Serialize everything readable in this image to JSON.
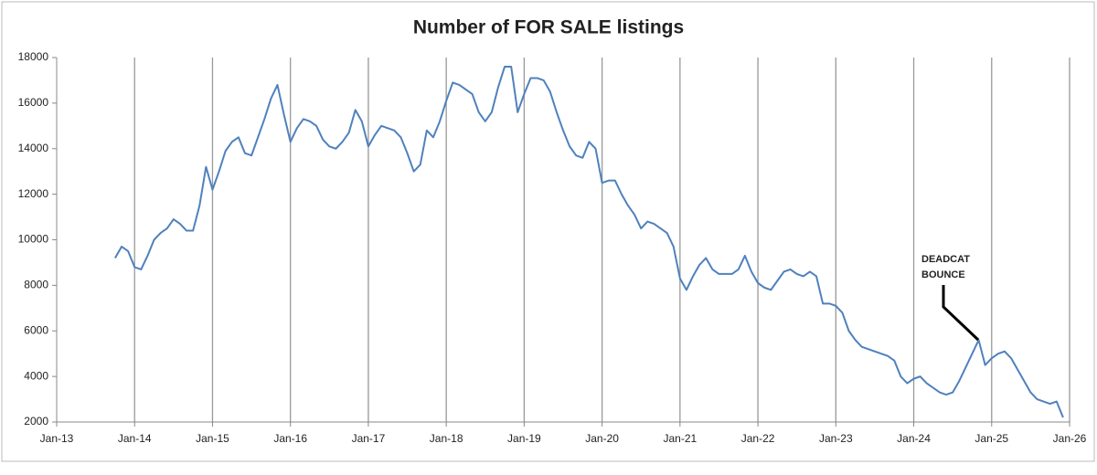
{
  "chart_data": {
    "type": "line",
    "title": "Number of FOR SALE listings",
    "x": [
      "2013-10",
      "2013-11",
      "2013-12",
      "2014-01",
      "2014-02",
      "2014-03",
      "2014-04",
      "2014-05",
      "2014-06",
      "2014-07",
      "2014-08",
      "2014-09",
      "2014-10",
      "2014-11",
      "2014-12",
      "2015-01",
      "2015-02",
      "2015-03",
      "2015-04",
      "2015-05",
      "2015-06",
      "2015-07",
      "2015-08",
      "2015-09",
      "2015-10",
      "2015-11",
      "2015-12",
      "2016-01",
      "2016-02",
      "2016-03",
      "2016-04",
      "2016-05",
      "2016-06",
      "2016-07",
      "2016-08",
      "2016-09",
      "2016-10",
      "2016-11",
      "2016-12",
      "2017-01",
      "2017-02",
      "2017-03",
      "2017-04",
      "2017-05",
      "2017-06",
      "2017-07",
      "2017-08",
      "2017-09",
      "2017-10",
      "2017-11",
      "2017-12",
      "2018-01",
      "2018-02",
      "2018-03",
      "2018-04",
      "2018-05",
      "2018-06",
      "2018-07",
      "2018-08",
      "2018-09",
      "2018-10",
      "2018-11",
      "2018-12",
      "2019-01",
      "2019-02",
      "2019-03",
      "2019-04",
      "2019-05",
      "2019-06",
      "2019-07",
      "2019-08",
      "2019-09",
      "2019-10",
      "2019-11",
      "2019-12",
      "2020-01",
      "2020-02",
      "2020-03",
      "2020-04",
      "2020-05",
      "2020-06",
      "2020-07",
      "2020-08",
      "2020-09",
      "2020-10",
      "2020-11",
      "2020-12",
      "2021-01",
      "2021-02",
      "2021-03",
      "2021-04",
      "2021-05",
      "2021-06",
      "2021-07",
      "2021-08",
      "2021-09",
      "2021-10",
      "2021-11",
      "2021-12",
      "2022-01",
      "2022-02",
      "2022-03",
      "2022-04",
      "2022-05",
      "2022-06",
      "2022-07",
      "2022-08",
      "2022-09",
      "2022-10",
      "2022-11",
      "2022-12",
      "2023-01",
      "2023-02",
      "2023-03",
      "2023-04",
      "2023-05",
      "2023-06",
      "2023-07",
      "2023-08",
      "2023-09",
      "2023-10",
      "2023-11",
      "2023-12",
      "2024-01",
      "2024-02",
      "2024-03",
      "2024-04",
      "2024-05",
      "2024-06",
      "2024-07",
      "2024-08",
      "2024-09",
      "2024-10",
      "2024-11",
      "2024-12",
      "2025-01",
      "2025-02",
      "2025-03",
      "2025-04",
      "2025-05",
      "2025-06",
      "2025-07",
      "2025-08",
      "2025-09",
      "2025-10",
      "2025-11",
      "2025-12"
    ],
    "series": [
      {
        "color": "#4f81bd",
        "values": [
          9200,
          9700,
          9500,
          8800,
          8700,
          9300,
          10000,
          10300,
          10500,
          10900,
          10700,
          10400,
          10400,
          11500,
          13200,
          12200,
          13000,
          13900,
          14300,
          14500,
          13800,
          13700,
          14500,
          15300,
          16200,
          16800,
          15500,
          14300,
          14900,
          15300,
          15200,
          15000,
          14400,
          14100,
          14000,
          14300,
          14700,
          15700,
          15200,
          14100,
          14600,
          15000,
          14900,
          14800,
          14500,
          13800,
          13000,
          13300,
          14800,
          14500,
          15200,
          16100,
          16900,
          16800,
          16600,
          16400,
          15600,
          15200,
          15600,
          16700,
          17600,
          17600,
          15600,
          16400,
          17100,
          17100,
          17000,
          16500,
          15600,
          14800,
          14100,
          13700,
          13600,
          14300,
          14000,
          12500,
          12600,
          12600,
          12000,
          11500,
          11100,
          10500,
          10800,
          10700,
          10500,
          10300,
          9700,
          8300,
          7800,
          8400,
          8900,
          9200,
          8700,
          8500,
          8500,
          8500,
          8700,
          9300,
          8600,
          8100,
          7900,
          7800,
          8200,
          8600,
          8700,
          8500,
          8400,
          8600,
          8400,
          7200,
          7200,
          7100,
          6800,
          6000,
          5600,
          5300,
          5200,
          5100,
          5000,
          4900,
          4700,
          4000,
          3700,
          3900,
          4000,
          3700,
          3500,
          3300,
          3200,
          3300,
          3800,
          4400,
          5000,
          5600,
          4500,
          4800,
          5000,
          5100,
          4800,
          4300,
          3800,
          3300,
          3000,
          2900,
          2800,
          2900,
          2200
        ]
      }
    ],
    "xlim": [
      "2013-01",
      "2026-01"
    ],
    "xticks": [
      {
        "value": "2013-01",
        "label": "Jan-13"
      },
      {
        "value": "2014-01",
        "label": "Jan-14"
      },
      {
        "value": "2015-01",
        "label": "Jan-15"
      },
      {
        "value": "2016-01",
        "label": "Jan-16"
      },
      {
        "value": "2017-01",
        "label": "Jan-17"
      },
      {
        "value": "2018-01",
        "label": "Jan-18"
      },
      {
        "value": "2019-01",
        "label": "Jan-19"
      },
      {
        "value": "2020-01",
        "label": "Jan-20"
      },
      {
        "value": "2021-01",
        "label": "Jan-21"
      },
      {
        "value": "2022-01",
        "label": "Jan-22"
      },
      {
        "value": "2023-01",
        "label": "Jan-23"
      },
      {
        "value": "2024-01",
        "label": "Jan-24"
      },
      {
        "value": "2025-01",
        "label": "Jan-25"
      },
      {
        "value": "2026-01",
        "label": "Jan-26"
      }
    ],
    "ylim": [
      2000,
      18000
    ],
    "yticks": [
      2000,
      4000,
      6000,
      8000,
      10000,
      12000,
      14000,
      16000,
      18000
    ],
    "grid": "x",
    "annotations": [
      {
        "lines": [
          "DEADCAT",
          "BOUNCE"
        ]
      }
    ]
  }
}
